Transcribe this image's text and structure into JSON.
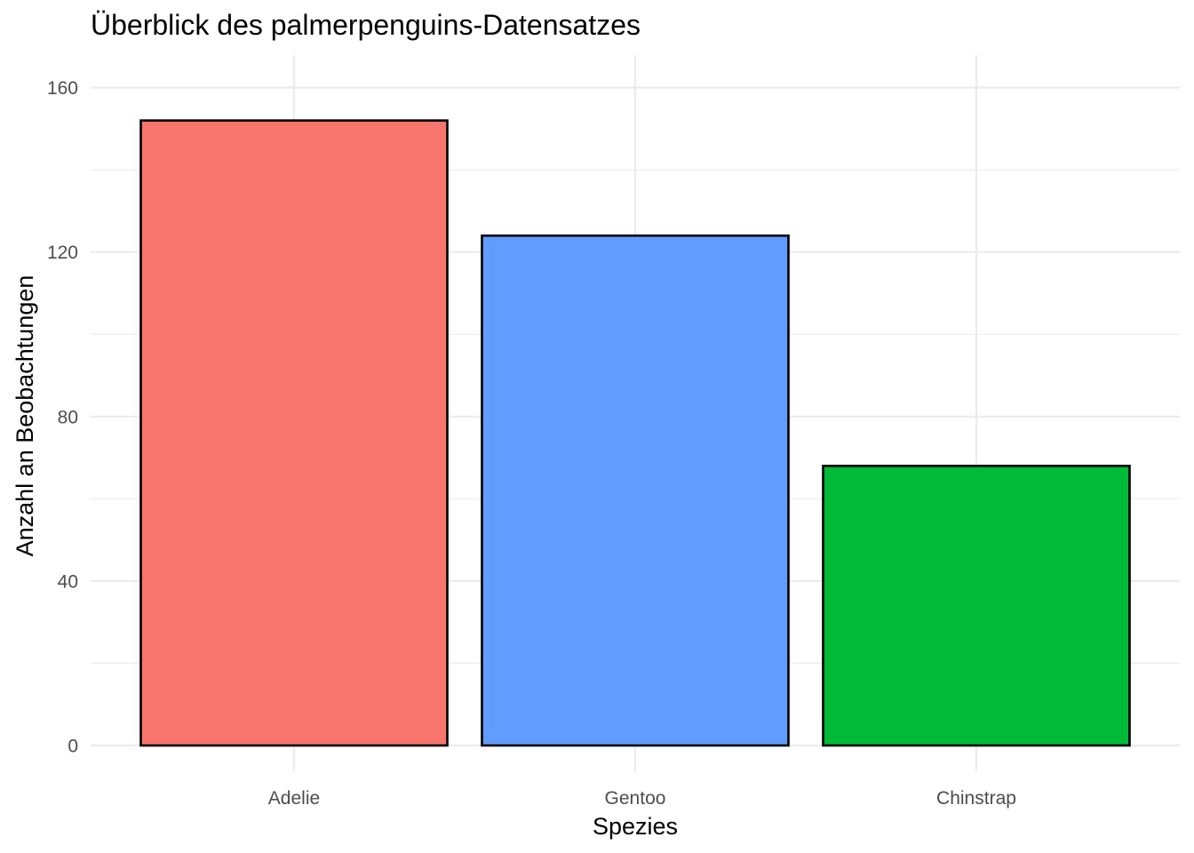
{
  "chart_data": {
    "type": "bar",
    "title": "Überblick des palmerpenguins-Datensatzes",
    "xlabel": "Spezies",
    "ylabel": "Anzahl an Beobachtungen",
    "categories": [
      "Adelie",
      "Gentoo",
      "Chinstrap"
    ],
    "values": [
      152,
      124,
      68
    ],
    "colors": [
      "#F8766D",
      "#619CFF",
      "#00BA38"
    ],
    "bar_outline_color": "#000000",
    "ylim": [
      0,
      168
    ],
    "yticks": [
      0,
      40,
      80,
      120,
      160
    ],
    "ytick_labels": [
      "0",
      "40",
      "80",
      "120",
      "160"
    ],
    "grid": true,
    "legend": "none"
  }
}
